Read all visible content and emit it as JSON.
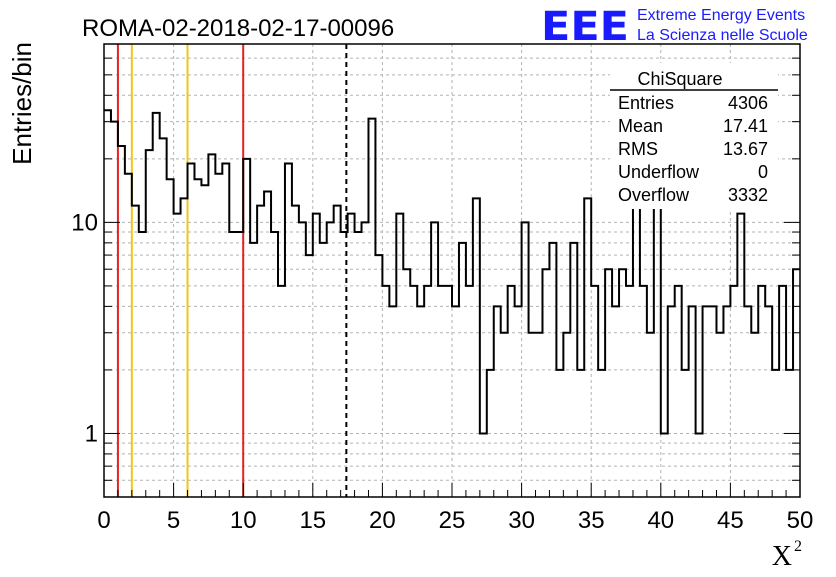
{
  "chart_data": {
    "type": "histogram",
    "title": "ROMA-02-2018-02-17-00096",
    "xlabel_base": "X",
    "xlabel_sup": "2",
    "ylabel": "Entries/bin",
    "x_range": [
      0,
      50
    ],
    "y_range": [
      0.5,
      70
    ],
    "y_scale": "log",
    "bin_width": 0.5,
    "x_ticks": [
      "0",
      "5",
      "10",
      "15",
      "20",
      "25",
      "30",
      "35",
      "40",
      "45",
      "50"
    ],
    "y_tick_labels": [
      {
        "value": 1,
        "label": "1"
      },
      {
        "value": 10,
        "label": "10"
      }
    ],
    "grid": true,
    "values": [
      34,
      30,
      23,
      17,
      12,
      9,
      22,
      33,
      25,
      16,
      11,
      13,
      19,
      16,
      15,
      21,
      17,
      19,
      9,
      9,
      20,
      8,
      12,
      14,
      9,
      5,
      19,
      12,
      10,
      7,
      11,
      8,
      10,
      12,
      9,
      11,
      9,
      10,
      31,
      7,
      5,
      4,
      11,
      6,
      5,
      4,
      5,
      10,
      5,
      5,
      4,
      8,
      5,
      13,
      1,
      2,
      4,
      3,
      5,
      4,
      10,
      3,
      3,
      6,
      8,
      2,
      3,
      8,
      2,
      13,
      5,
      2,
      6,
      4,
      6,
      5,
      13,
      5,
      3,
      13,
      1,
      4,
      5,
      2,
      4,
      1,
      4,
      4,
      3,
      4,
      5,
      11,
      4,
      3,
      5,
      4,
      2,
      5,
      2,
      6
    ],
    "vertical_lines": [
      {
        "x": 1,
        "color": "#e8211e",
        "style": "solid"
      },
      {
        "x": 2,
        "color": "#f3c51b",
        "style": "solid"
      },
      {
        "x": 6,
        "color": "#f3c51b",
        "style": "solid"
      },
      {
        "x": 10,
        "color": "#e8211e",
        "style": "solid"
      },
      {
        "x": 17.41,
        "color": "#000000",
        "style": "dashed"
      }
    ],
    "stats_box": {
      "title": "ChiSquare",
      "rows": [
        {
          "label": "Entries",
          "value": "4306"
        },
        {
          "label": "Mean",
          "value": "17.41"
        },
        {
          "label": "RMS",
          "value": "13.67"
        },
        {
          "label": "Underflow",
          "value": "0"
        },
        {
          "label": "Overflow",
          "value": "3332"
        }
      ]
    }
  },
  "logo": {
    "letters": "EEE",
    "line1": "Extreme Energy Events",
    "line2": "La Scienza nelle Scuole",
    "color": "#1a1aff"
  },
  "colors": {
    "histogram": "#000000",
    "grid": "#b3b3b3",
    "frame": "#000000"
  }
}
